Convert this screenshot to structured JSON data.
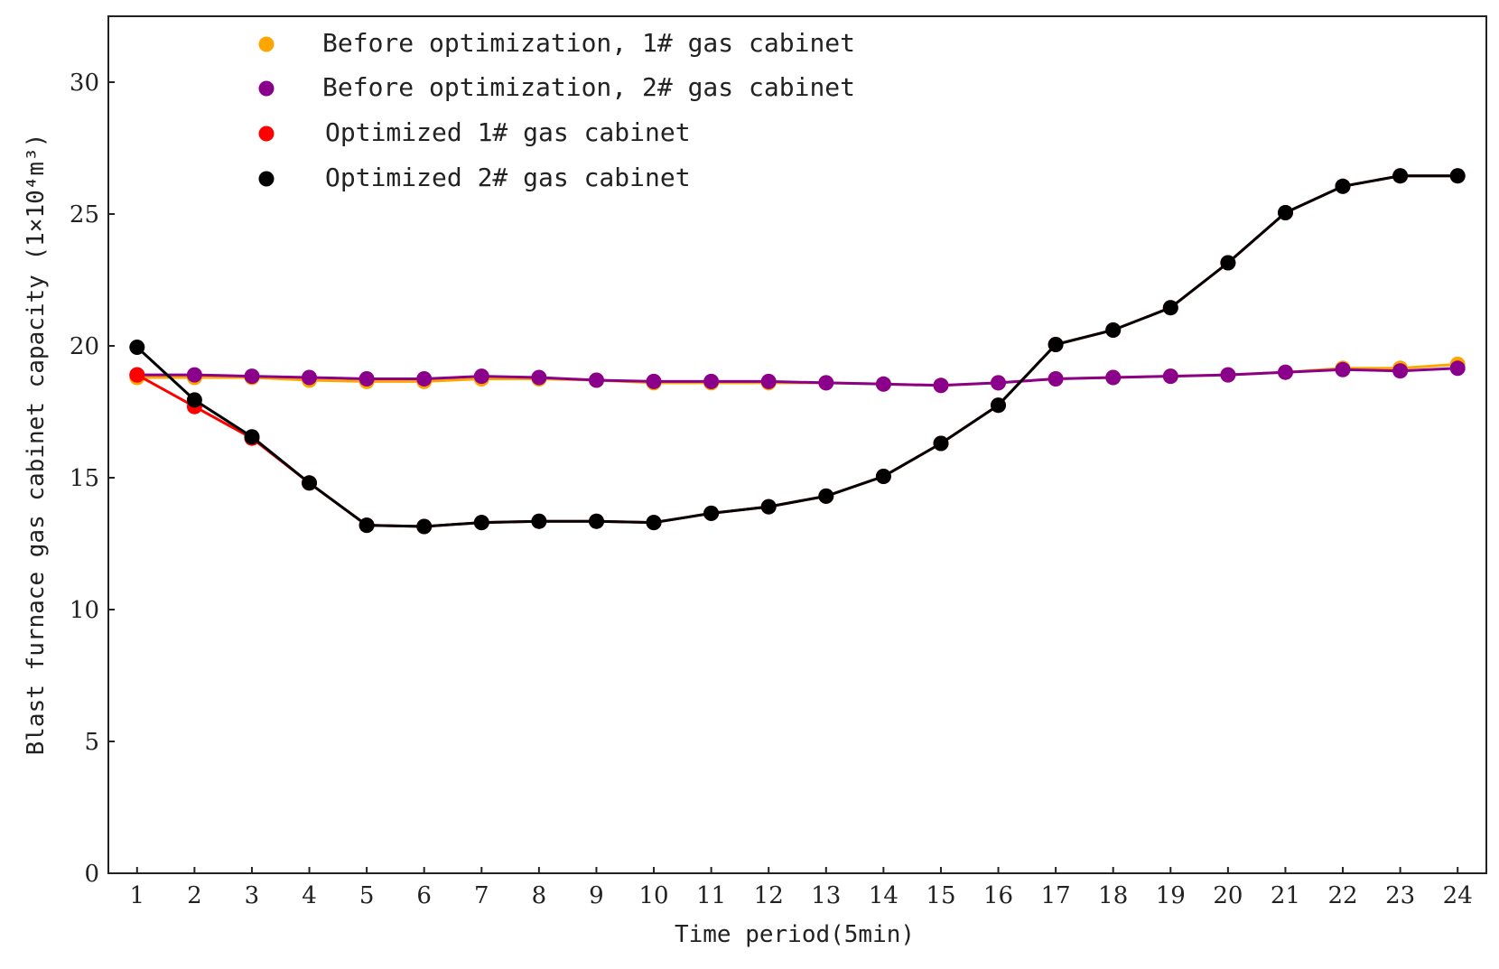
{
  "chart_data": {
    "type": "line",
    "xlabel": "Time period(5min)",
    "ylabel": "Blast furnace gas cabinet capacity (1×10⁴m³)",
    "x": [
      1,
      2,
      3,
      4,
      5,
      6,
      7,
      8,
      9,
      10,
      11,
      12,
      13,
      14,
      15,
      16,
      17,
      18,
      19,
      20,
      21,
      22,
      23,
      24
    ],
    "xlim": [
      0.5,
      24.5
    ],
    "ylim": [
      0,
      32.5
    ],
    "yticks": [
      0,
      5,
      10,
      15,
      20,
      25,
      30
    ],
    "grid": false,
    "legend_position": "top-left",
    "series": [
      {
        "name": "Before optimization, 1# gas cabinet",
        "color": "#ffa500",
        "values": [
          18.8,
          18.8,
          18.8,
          18.7,
          18.65,
          18.65,
          18.75,
          18.75,
          18.7,
          18.6,
          18.6,
          18.6,
          18.6,
          18.55,
          18.5,
          18.6,
          18.75,
          18.8,
          18.85,
          18.9,
          19.0,
          19.15,
          19.15,
          19.3
        ]
      },
      {
        "name": "Before optimization, 2# gas cabinet",
        "color": "#8b008b",
        "values": [
          18.9,
          18.9,
          18.85,
          18.8,
          18.75,
          18.75,
          18.85,
          18.8,
          18.7,
          18.65,
          18.65,
          18.65,
          18.6,
          18.55,
          18.5,
          18.6,
          18.75,
          18.8,
          18.85,
          18.9,
          19.0,
          19.1,
          19.05,
          19.15
        ]
      },
      {
        "name": "Optimized 1# gas cabinet",
        "color": "#ff0000",
        "values": [
          18.9,
          17.7,
          16.5,
          14.8,
          13.2,
          13.15,
          13.3,
          13.35,
          13.35,
          13.3,
          13.65,
          13.9,
          14.3,
          15.05,
          16.3,
          17.75,
          20.05,
          20.6,
          21.45,
          23.15,
          25.05,
          26.05,
          26.45,
          26.45
        ]
      },
      {
        "name": "Optimized 2# gas cabinet",
        "color": "#000000",
        "values": [
          19.95,
          17.95,
          16.55,
          14.8,
          13.2,
          13.15,
          13.3,
          13.35,
          13.35,
          13.3,
          13.65,
          13.9,
          14.3,
          15.05,
          16.3,
          17.75,
          20.05,
          20.6,
          21.45,
          23.15,
          25.05,
          26.05,
          26.45,
          26.45
        ]
      }
    ]
  }
}
